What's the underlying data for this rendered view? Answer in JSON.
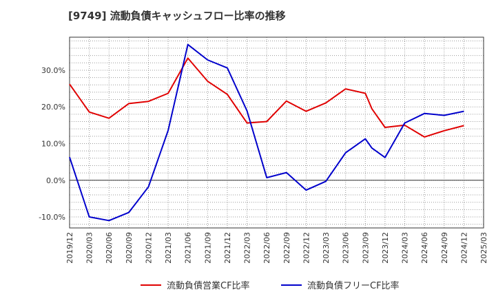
{
  "chart_data": {
    "type": "line",
    "title": "[9749]  流動負債キャッシュフロー比率の推移",
    "xlabel": "",
    "ylabel": "",
    "x": [
      "2019/12",
      "2020/03",
      "2020/06",
      "2020/09",
      "2020/12",
      "2021/03",
      "2021/06",
      "2021/09",
      "2021/12",
      "2022/03",
      "2022/06",
      "2022/09",
      "2022/12",
      "2023/03",
      "2023/06",
      "2023/09",
      "2023/10",
      "2023/12",
      "2024/03",
      "2024/06",
      "2024/09",
      "2024/12"
    ],
    "x_ticks": [
      "2019/12",
      "2020/03",
      "2020/06",
      "2020/09",
      "2020/12",
      "2021/03",
      "2021/06",
      "2021/09",
      "2021/12",
      "2022/03",
      "2022/06",
      "2022/09",
      "2022/12",
      "2023/03",
      "2023/06",
      "2023/09",
      "2023/12",
      "2024/03",
      "2024/06",
      "2024/09",
      "2024/12",
      "2025/03"
    ],
    "y_ticks": [
      "-10.0%",
      "0.0%",
      "10.0%",
      "20.0%",
      "30.0%"
    ],
    "ylim": [
      -13,
      39
    ],
    "series": [
      {
        "name": "流動負債営業CF比率",
        "color": "#e00000",
        "values": [
          26.2,
          18.6,
          16.9,
          20.9,
          21.5,
          23.7,
          33.3,
          27.0,
          23.4,
          15.6,
          16.0,
          21.6,
          18.8,
          21.1,
          24.9,
          23.7,
          19.5,
          14.4,
          15.0,
          11.8,
          13.5,
          14.9
        ]
      },
      {
        "name": "流動負債フリーCF比率",
        "color": "#0000cc",
        "values": [
          6.3,
          -10.0,
          -11.0,
          -8.8,
          -1.8,
          13.6,
          37.0,
          32.8,
          30.6,
          18.9,
          0.7,
          2.1,
          -2.7,
          -0.3,
          7.5,
          11.3,
          8.8,
          6.2,
          15.6,
          18.2,
          17.7,
          18.8
        ]
      }
    ],
    "grid": true,
    "legend": "bottom"
  }
}
